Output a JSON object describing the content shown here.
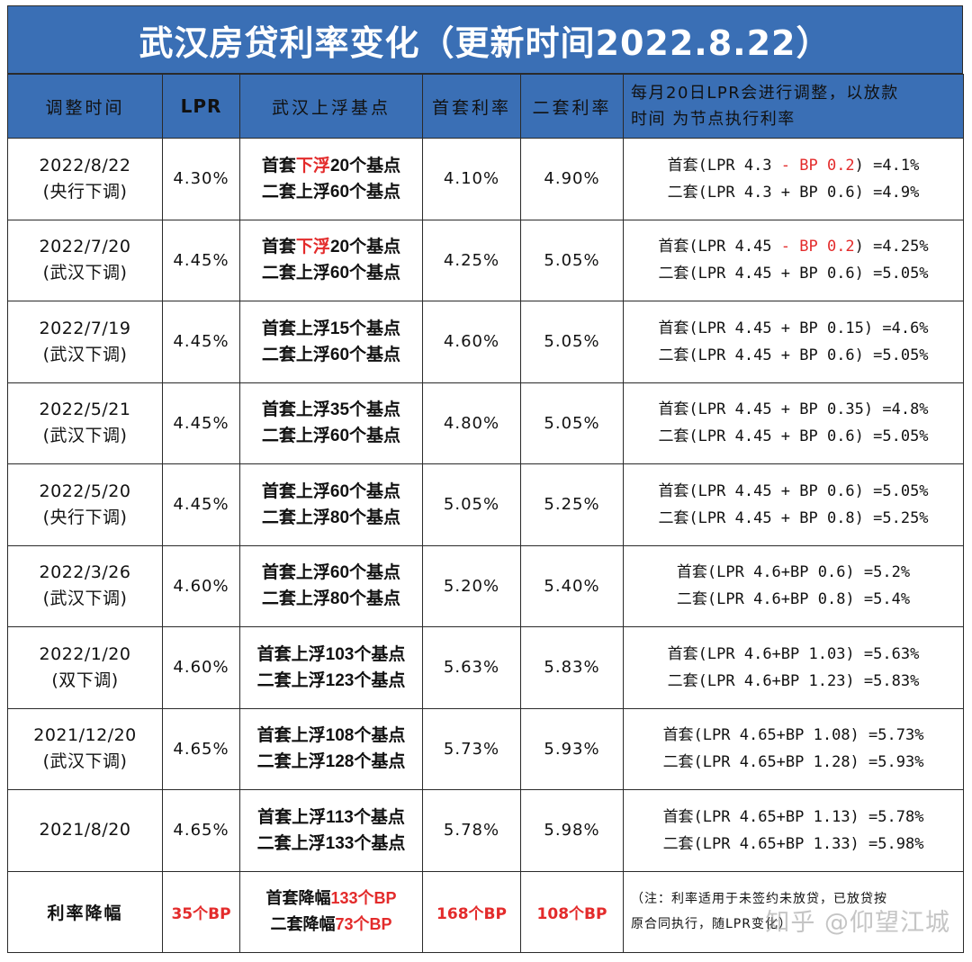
{
  "title": "武汉房贷利率变化（更新时间2022.8.22）",
  "headers": {
    "date": "调整时间",
    "lpr": "LPR",
    "basis": "武汉上浮基点",
    "first_rate": "首套利率",
    "second_rate": "二套利率",
    "note_line1": "每月20日LPR会进行调整，以放款",
    "note_line2": "时间 为节点执行利率"
  },
  "rows": [
    {
      "date_line1": "2022/8/22",
      "date_line2": "(央行下调)",
      "lpr": "4.30%",
      "basis1_pre": "首套",
      "basis1_red": "下浮",
      "basis1_post": "20个基点",
      "basis2": "二套上浮60个基点",
      "first_rate": "4.10%",
      "second_rate": "4.90%",
      "calc1_pre": "首套(LPR 4.3 ",
      "calc1_red": "- BP 0.2",
      "calc1_post": ") =4.1%",
      "calc2": "二套(LPR 4.3 + BP 0.6) =4.9%"
    },
    {
      "date_line1": "2022/7/20",
      "date_line2": "(武汉下调)",
      "lpr": "4.45%",
      "basis1_pre": "首套",
      "basis1_red": "下浮",
      "basis1_post": "20个基点",
      "basis2": "二套上浮60个基点",
      "first_rate": "4.25%",
      "second_rate": "5.05%",
      "calc1_pre": "首套(LPR 4.45 ",
      "calc1_red": "- BP 0.2",
      "calc1_post": ") =4.25%",
      "calc2": "二套(LPR 4.45 + BP 0.6) =5.05%"
    },
    {
      "date_line1": "2022/7/19",
      "date_line2": "(武汉下调)",
      "lpr": "4.45%",
      "basis1_pre": "首套上浮15个基点",
      "basis1_red": "",
      "basis1_post": "",
      "basis2": "二套上浮60个基点",
      "first_rate": "4.60%",
      "second_rate": "5.05%",
      "calc1_pre": "首套(LPR 4.45 + BP 0.15) =4.6%",
      "calc1_red": "",
      "calc1_post": "",
      "calc2": "二套(LPR 4.45 + BP 0.6) =5.05%"
    },
    {
      "date_line1": "2022/5/21",
      "date_line2": "(武汉下调)",
      "lpr": "4.45%",
      "basis1_pre": "首套上浮35个基点",
      "basis1_red": "",
      "basis1_post": "",
      "basis2": "二套上浮60个基点",
      "first_rate": "4.80%",
      "second_rate": "5.05%",
      "calc1_pre": "首套(LPR 4.45 + BP 0.35) =4.8%",
      "calc1_red": "",
      "calc1_post": "",
      "calc2": "二套(LPR 4.45 + BP 0.6) =5.05%"
    },
    {
      "date_line1": "2022/5/20",
      "date_line2": "(央行下调)",
      "lpr": "4.45%",
      "basis1_pre": "首套上浮60个基点",
      "basis1_red": "",
      "basis1_post": "",
      "basis2": "二套上浮80个基点",
      "first_rate": "5.05%",
      "second_rate": "5.25%",
      "calc1_pre": "首套(LPR 4.45 + BP 0.6) =5.05%",
      "calc1_red": "",
      "calc1_post": "",
      "calc2": "二套(LPR 4.45 + BP 0.8) =5.25%"
    },
    {
      "date_line1": "2022/3/26",
      "date_line2": "(武汉下调)",
      "lpr": "4.60%",
      "basis1_pre": "首套上浮60个基点",
      "basis1_red": "",
      "basis1_post": "",
      "basis2": "二套上浮80个基点",
      "first_rate": "5.20%",
      "second_rate": "5.40%",
      "calc1_pre": "首套(LPR 4.6+BP 0.6) =5.2%",
      "calc1_red": "",
      "calc1_post": "",
      "calc2": "二套(LPR 4.6+BP 0.8) =5.4%"
    },
    {
      "date_line1": "2022/1/20",
      "date_line2": "(双下调)",
      "lpr": "4.60%",
      "basis1_pre": "首套上浮103个基点",
      "basis1_red": "",
      "basis1_post": "",
      "basis2": "二套上浮123个基点",
      "first_rate": "5.63%",
      "second_rate": "5.83%",
      "calc1_pre": "首套(LPR 4.6+BP 1.03) =5.63%",
      "calc1_red": "",
      "calc1_post": "",
      "calc2": "二套(LPR 4.6+BP 1.23) =5.83%"
    },
    {
      "date_line1": "2021/12/20",
      "date_line2": "(武汉下调)",
      "lpr": "4.65%",
      "basis1_pre": "首套上浮108个基点",
      "basis1_red": "",
      "basis1_post": "",
      "basis2": "二套上浮128个基点",
      "first_rate": "5.73%",
      "second_rate": "5.93%",
      "calc1_pre": "首套(LPR 4.65+BP 1.08) =5.73%",
      "calc1_red": "",
      "calc1_post": "",
      "calc2": "二套(LPR 4.65+BP 1.28) =5.93%"
    },
    {
      "date_line1": "2021/8/20",
      "date_line2": "",
      "lpr": "4.65%",
      "basis1_pre": "首套上浮113个基点",
      "basis1_red": "",
      "basis1_post": "",
      "basis2": "二套上浮133个基点",
      "first_rate": "5.78%",
      "second_rate": "5.98%",
      "calc1_pre": "首套(LPR 4.65+BP 1.13) =5.78%",
      "calc1_red": "",
      "calc1_post": "",
      "calc2": "二套(LPR 4.65+BP 1.33) =5.98%"
    }
  ],
  "summary": {
    "label": "利率降幅",
    "lpr": "35个BP",
    "basis1_pre": "首套降幅",
    "basis1_red": "133个BP",
    "basis2_pre": "二套降幅",
    "basis2_red": "73个BP",
    "first_rate": "168个BP",
    "second_rate": "108个BP",
    "note_line1": "（注：利率适用于未签约未放贷，已放贷按",
    "note_line2": "原合同执行，随LPR变化）"
  },
  "watermark": "知乎 @仰望江城",
  "colors": {
    "header_blue": "#3a6fb5",
    "accent_red": "#e32b2b",
    "border": "#2a2a2a"
  }
}
